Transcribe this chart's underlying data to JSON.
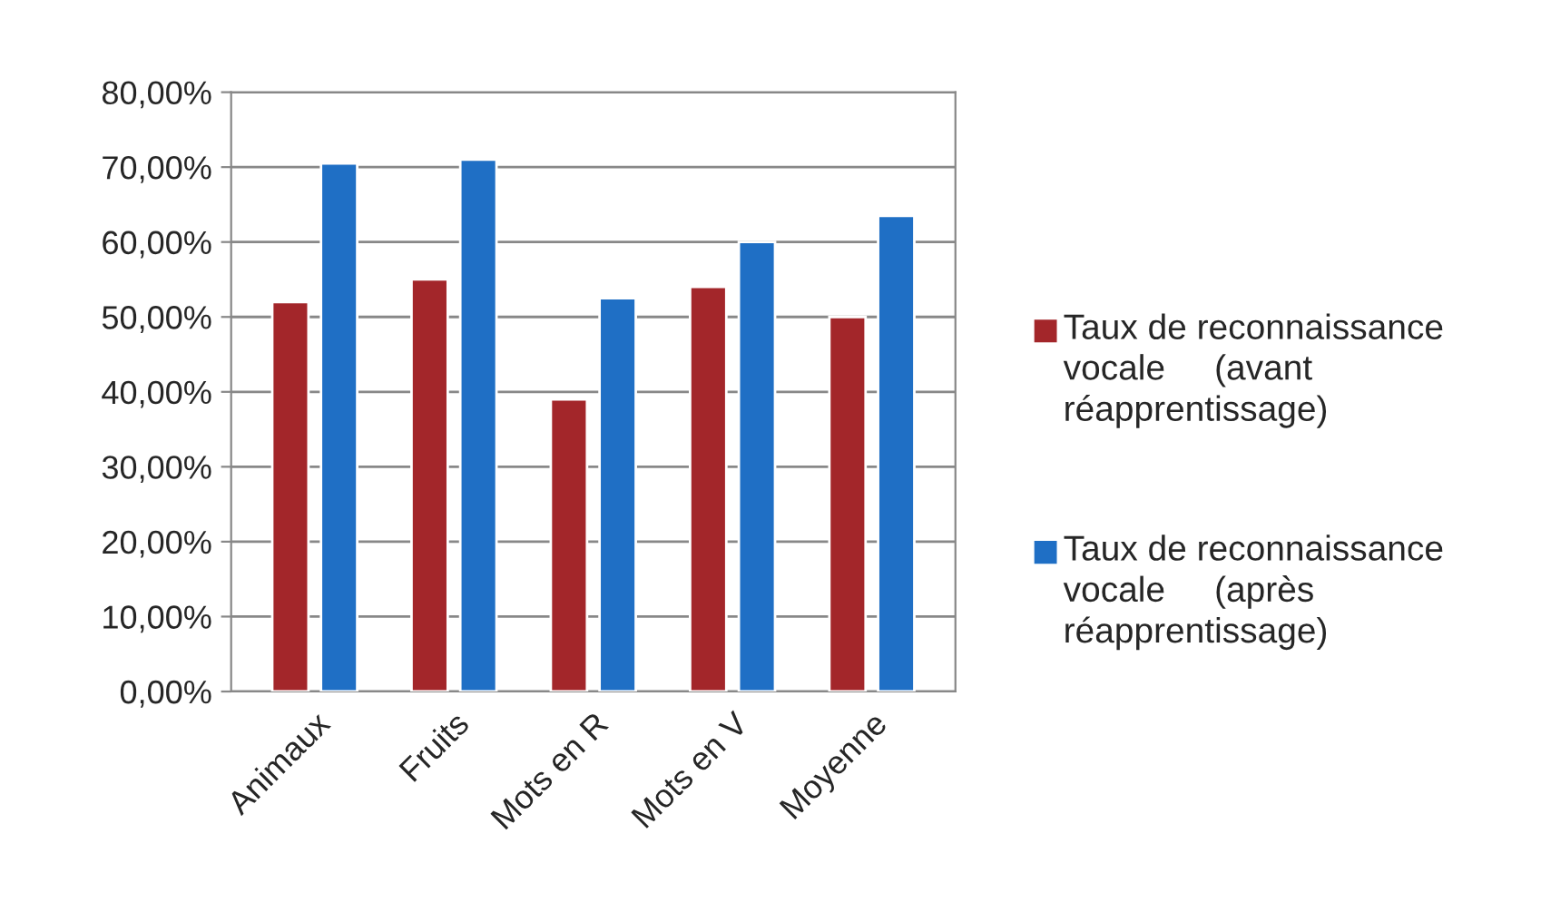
{
  "chart_data": {
    "type": "bar",
    "categories": [
      "Animaux",
      "Fruits",
      "Mots en R",
      "Mots en V",
      "Moyenne"
    ],
    "series": [
      {
        "name": "Taux de reconnaissance vocale     (avant réapprentissage)",
        "color": "#a3262a",
        "values": [
          52,
          55,
          39,
          54,
          50
        ]
      },
      {
        "name": "Taux de reconnaissance vocale     (après réapprentissage)",
        "color": "#1f6fc5",
        "values": [
          70.5,
          71,
          52.5,
          60,
          63.5
        ]
      }
    ],
    "ylim": [
      0,
      80
    ],
    "yticks": [
      {
        "value": 0,
        "label": "0,00%"
      },
      {
        "value": 10,
        "label": "10,00%"
      },
      {
        "value": 20,
        "label": "20,00%"
      },
      {
        "value": 30,
        "label": "30,00%"
      },
      {
        "value": 40,
        "label": "40,00%"
      },
      {
        "value": 50,
        "label": "50,00%"
      },
      {
        "value": 60,
        "label": "60,00%"
      },
      {
        "value": 70,
        "label": "70,00%"
      },
      {
        "value": 80,
        "label": "80,00%"
      }
    ],
    "grid": "y",
    "legend": "right"
  }
}
